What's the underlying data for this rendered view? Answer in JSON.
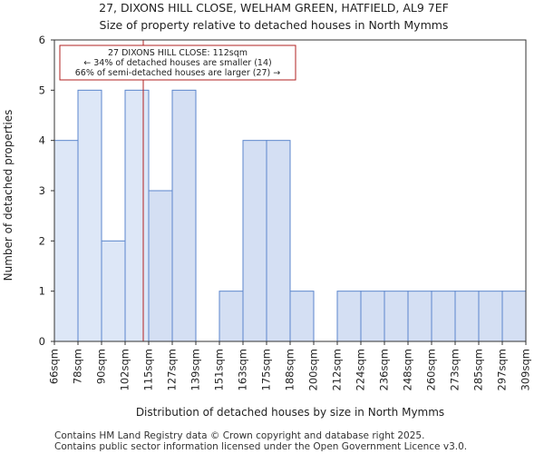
{
  "chart_data": {
    "type": "bar",
    "title": "27, DIXONS HILL CLOSE, WELHAM GREEN, HATFIELD, AL9 7EF",
    "subtitle": "Size of property relative to detached houses in North Mymms",
    "xlabel": "Distribution of detached houses by size in North Mymms",
    "ylabel": "Number of detached properties",
    "x_tick_labels": [
      "66sqm",
      "78sqm",
      "90sqm",
      "102sqm",
      "115sqm",
      "127sqm",
      "139sqm",
      "151sqm",
      "163sqm",
      "175sqm",
      "188sqm",
      "200sqm",
      "212sqm",
      "224sqm",
      "236sqm",
      "248sqm",
      "260sqm",
      "273sqm",
      "285sqm",
      "297sqm",
      "309sqm"
    ],
    "values": [
      4,
      5,
      2,
      5,
      3,
      5,
      0,
      1,
      4,
      4,
      1,
      0,
      1,
      1,
      1,
      1,
      1,
      1,
      1,
      1
    ],
    "highlight_count": 4,
    "ylim": [
      0,
      6
    ],
    "y_ticks": [
      0,
      1,
      2,
      3,
      4,
      5,
      6
    ],
    "marker_value_sqm": 112,
    "marker_color": "#b22222",
    "bar_fill_highlight": "#dde7f7",
    "bar_fill": "#d4dff3",
    "bar_edge": "#5b86cc",
    "annotation": {
      "line1": "27 DIXONS HILL CLOSE: 112sqm",
      "line2": "← 34% of detached houses are smaller (14)",
      "line3": "66% of semi-detached houses are larger (27) →"
    }
  },
  "footer": {
    "line1": "Contains HM Land Registry data © Crown copyright and database right 2025.",
    "line2": "Contains public sector information licensed under the Open Government Licence v3.0."
  }
}
